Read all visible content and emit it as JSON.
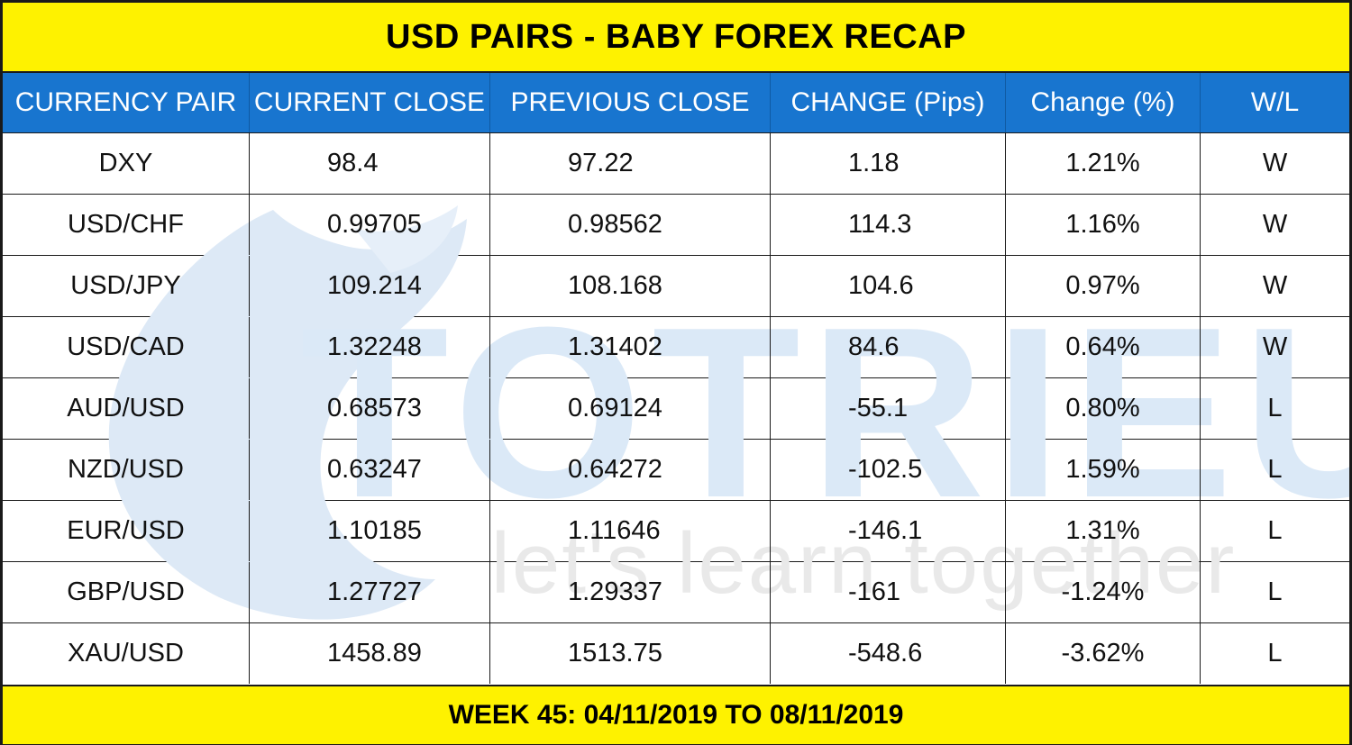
{
  "title": "USD PAIRS - BABY FOREX RECAP",
  "footer": "WEEK 45: 04/11/2019 TO 08/11/2019",
  "colors": {
    "title_bg": "#fef200",
    "header_bg": "#1875cf",
    "header_text": "#ffffff",
    "watermark": "#dbe9f7"
  },
  "columns": [
    "CURRENCY PAIR",
    "CURRENT CLOSE",
    "PREVIOUS CLOSE",
    "CHANGE (Pips)",
    "Change (%)",
    "W/L"
  ],
  "rows": [
    [
      "DXY",
      "98.4",
      "97.22",
      "1.18",
      "1.21%",
      "W"
    ],
    [
      "USD/CHF",
      "0.99705",
      "0.98562",
      "114.3",
      "1.16%",
      "W"
    ],
    [
      "USD/JPY",
      "109.214",
      "108.168",
      "104.6",
      "0.97%",
      "W"
    ],
    [
      "USD/CAD",
      "1.32248",
      "1.31402",
      "84.6",
      "0.64%",
      "W"
    ],
    [
      "AUD/USD",
      "0.68573",
      "0.69124",
      "-55.1",
      "0.80%",
      "L"
    ],
    [
      "NZD/USD",
      "0.63247",
      "0.64272",
      "-102.5",
      "1.59%",
      "L"
    ],
    [
      "EUR/USD",
      "1.10185",
      "1.11646",
      "-146.1",
      "1.31%",
      "L"
    ],
    [
      "GBP/USD",
      "1.27727",
      "1.29337",
      "-161",
      "-1.24%",
      "L"
    ],
    [
      "XAU/USD",
      "1458.89",
      "1513.75",
      "-548.6",
      "-3.62%",
      "L"
    ]
  ],
  "watermark": {
    "brand": "TOTRIEU",
    "tagline": "let's learn together",
    "logo_icon": "flame-logo-icon"
  }
}
